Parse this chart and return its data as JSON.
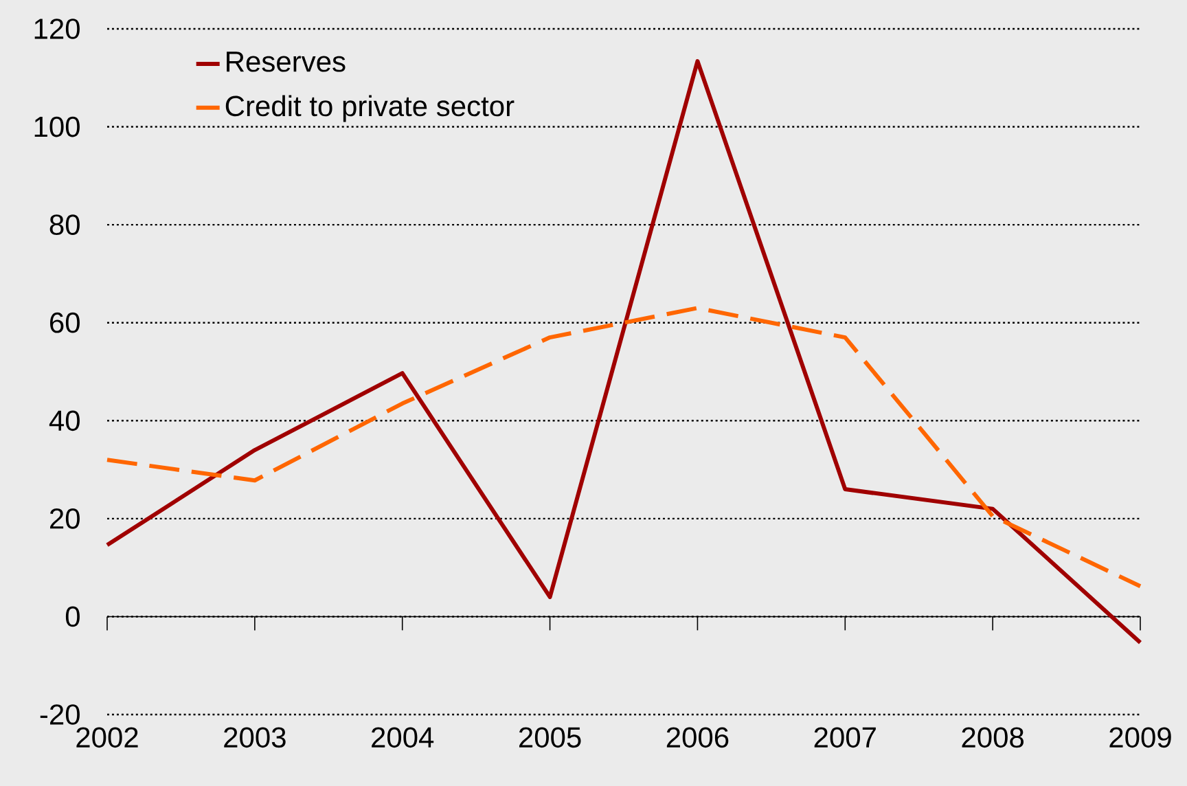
{
  "chart_data": {
    "type": "line",
    "categories": [
      "2002",
      "2003",
      "2004",
      "2005",
      "2006",
      "2007",
      "2008",
      "2009"
    ],
    "series": [
      {
        "name": "Reserves",
        "color": "#a00000",
        "line_style": "solid",
        "values": [
          14.6,
          34,
          49.7,
          4,
          113.4,
          26,
          22,
          -5.3
        ]
      },
      {
        "name": "Credit to private sector",
        "color": "#ff6600",
        "line_style": "dashed",
        "values": [
          32,
          27.8,
          43.5,
          57,
          63,
          57,
          20.5,
          6.2
        ]
      }
    ],
    "ylim": [
      -20,
      120
    ],
    "yticks": [
      -20,
      0,
      20,
      40,
      60,
      80,
      100,
      120
    ],
    "grid": "y",
    "legend": "top left"
  }
}
